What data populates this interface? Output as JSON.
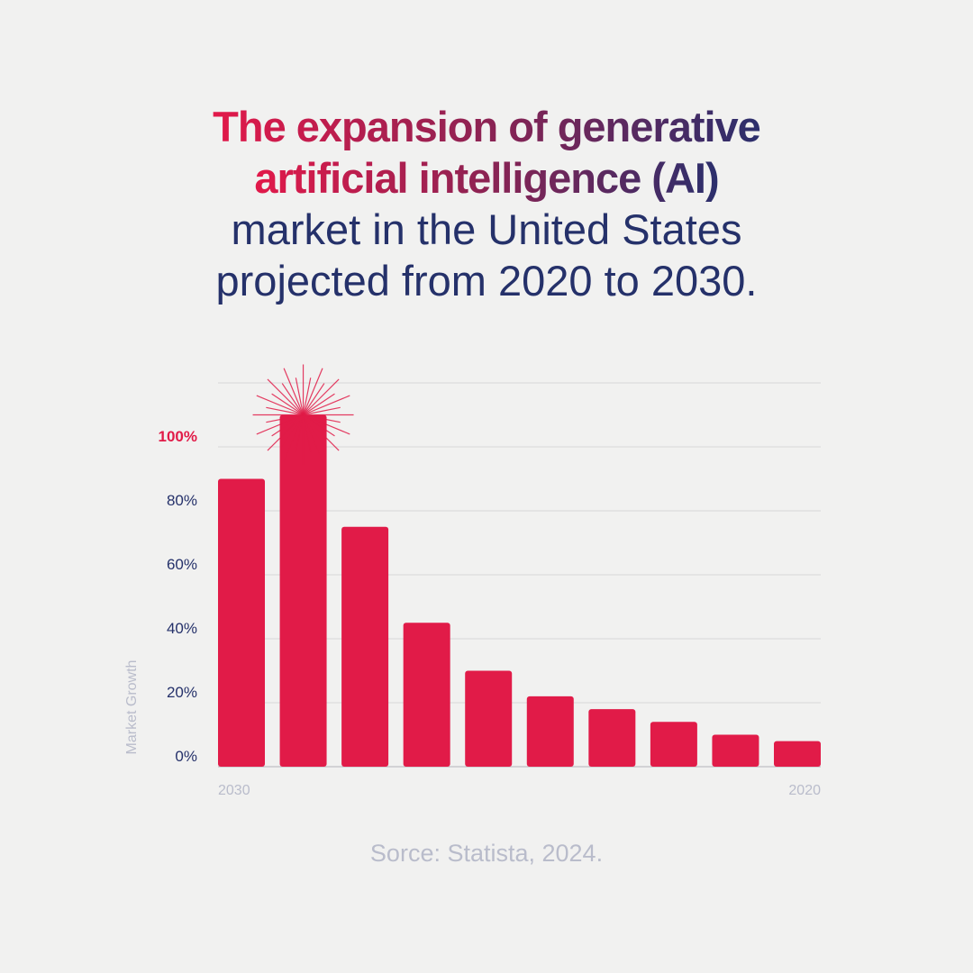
{
  "title": {
    "line1": "The expansion of generative",
    "line2": "artificial intelligence (AI)",
    "line3": "market in the United States",
    "line4": "projected from 2020 to 2030."
  },
  "source": "Sorce: Statista, 2024.",
  "colors": {
    "bar": "#e11b48",
    "highlight": "#e11b48",
    "title_dark": "#25316a",
    "muted": "#b9bccb"
  },
  "chart_data": {
    "type": "bar",
    "title": "The expansion of generative artificial intelligence (AI) market in the United States projected from 2020 to 2030.",
    "ylabel": "Market Growth",
    "xlabel": "",
    "x_tick_labels": [
      "2030",
      "2020"
    ],
    "values": [
      90,
      110,
      75,
      45,
      30,
      22,
      18,
      14,
      10,
      8
    ],
    "ylim": [
      0,
      120
    ],
    "y_ticks": [
      {
        "value": 0,
        "label": "0%"
      },
      {
        "value": 20,
        "label": "20%"
      },
      {
        "value": 40,
        "label": "40%"
      },
      {
        "value": 60,
        "label": "60%"
      },
      {
        "value": 80,
        "label": "80%"
      },
      {
        "value": 100,
        "label": "100%",
        "highlight": true
      }
    ],
    "gridlines": [
      20,
      40,
      60,
      80,
      100,
      120
    ],
    "grid": true,
    "highlight_bar_index": 1,
    "legend": "none"
  }
}
